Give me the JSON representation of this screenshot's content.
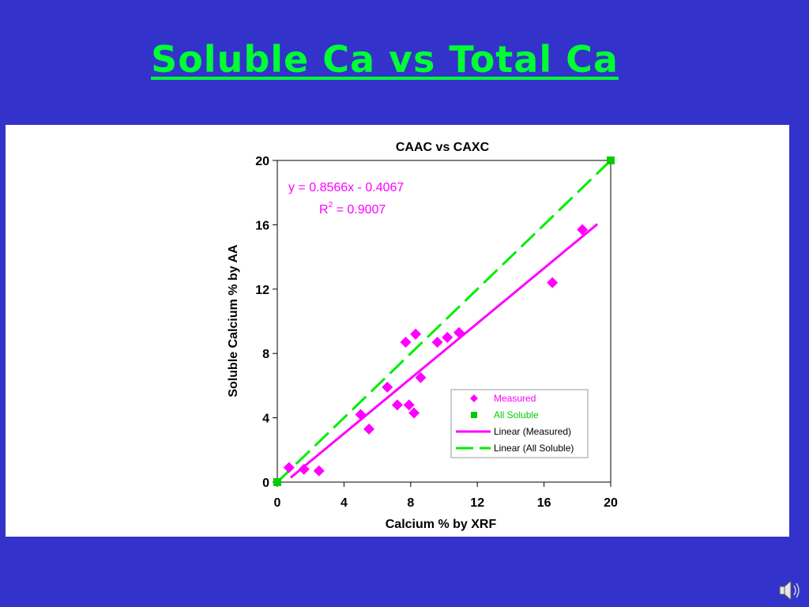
{
  "slide": {
    "title": "Soluble Ca vs Total Ca",
    "title_color": "#00ff33",
    "background_color": "#3333cc",
    "speaker_icon": "speaker-icon"
  },
  "chart_data": {
    "type": "scatter",
    "title": "CAAC vs CAXC",
    "xlabel": "Calcium % by XRF",
    "ylabel": "Soluble Calcium % by AA",
    "xlim": [
      0,
      20
    ],
    "ylim": [
      0,
      20
    ],
    "x_ticks": [
      "0",
      "4",
      "8",
      "12",
      "16",
      "20"
    ],
    "y_ticks": [
      "0",
      "4",
      "8",
      "12",
      "16",
      "20"
    ],
    "grid": false,
    "legend_position": "bottom-right",
    "series": [
      {
        "name": "Measured",
        "marker": "diamond",
        "color": "#ff00ff",
        "points": [
          [
            0.7,
            0.9
          ],
          [
            1.6,
            0.8
          ],
          [
            2.5,
            0.7
          ],
          [
            5.0,
            4.2
          ],
          [
            5.5,
            3.3
          ],
          [
            6.6,
            5.9
          ],
          [
            7.2,
            4.8
          ],
          [
            7.7,
            8.7
          ],
          [
            7.9,
            4.8
          ],
          [
            8.2,
            4.3
          ],
          [
            8.3,
            9.2
          ],
          [
            8.6,
            6.5
          ],
          [
            9.6,
            8.7
          ],
          [
            10.2,
            9.0
          ],
          [
            10.9,
            9.3
          ],
          [
            16.5,
            12.4
          ],
          [
            18.3,
            15.7
          ]
        ]
      },
      {
        "name": "All Soluble",
        "marker": "square",
        "color": "#00cc00",
        "points": [
          [
            0,
            0
          ],
          [
            20,
            20
          ]
        ]
      }
    ],
    "trendlines": [
      {
        "name": "Linear (Measured)",
        "color": "#ff00ff",
        "style": "solid",
        "slope": 0.8566,
        "intercept": -0.4067,
        "x_range": [
          0.8,
          19.2
        ]
      },
      {
        "name": "Linear (All Soluble)",
        "color": "#00ee00",
        "style": "dashed",
        "slope": 1,
        "intercept": 0,
        "x_range": [
          0,
          20
        ]
      }
    ],
    "annotations": {
      "equation": "y = 0.8566x - 0.4067",
      "r2_prefix": "R",
      "r2_sup": "2",
      "r2_value": " = 0.9007",
      "color": "#ff00ff"
    },
    "legend": [
      "Measured",
      "All Soluble",
      "Linear (Measured)",
      "Linear (All Soluble)"
    ]
  }
}
